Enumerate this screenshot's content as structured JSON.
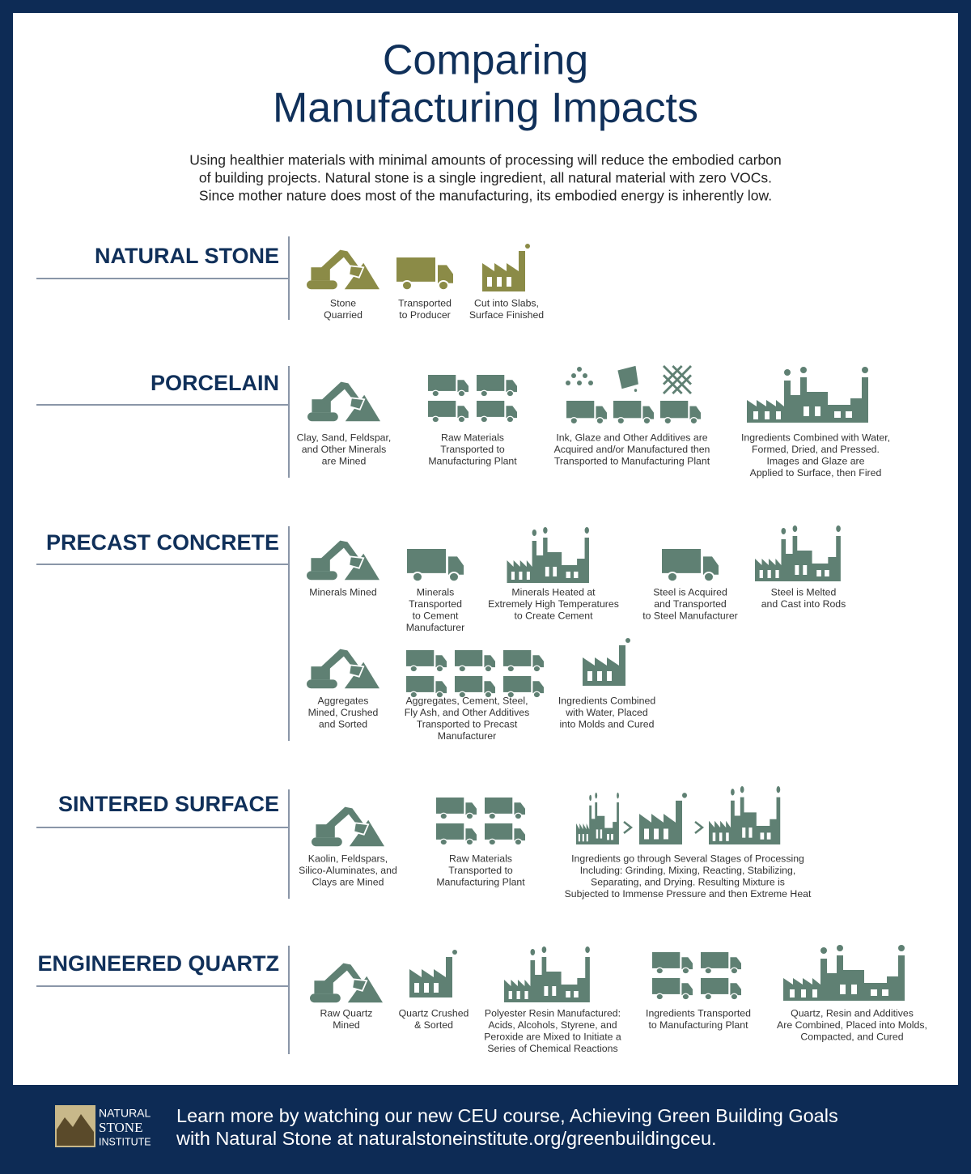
{
  "header": {
    "title": [
      "Comparing",
      "Manufacturing Impacts"
    ],
    "intro": [
      "Using healthier materials with minimal amounts of processing will reduce the embodied carbon",
      "of building projects. Natural stone is a single ingredient, all natural material with zero VOCs.",
      "Since mother nature does most of the manufacturing, its embodied energy is inherently low."
    ]
  },
  "sections": [
    {
      "name": "NATURAL STONE",
      "steps": [
        [
          "Stone",
          "Quarried"
        ],
        [
          "Transported",
          "to Producer"
        ],
        [
          "Cut into Slabs,",
          "Surface Finished"
        ]
      ]
    },
    {
      "name": "PORCELAIN",
      "steps": [
        [
          "Clay, Sand, Feldspar,",
          "and Other Minerals",
          "are Mined"
        ],
        [
          "Raw Materials",
          "Transported to",
          "Manufacturing Plant"
        ],
        [
          "Ink, Glaze and Other Additives are",
          "Acquired and/or Manufactured then",
          "Transported to Manufacturing Plant"
        ],
        [
          "Ingredients Combined with Water,",
          "Formed, Dried, and Pressed.",
          "Images and Glaze are",
          "Applied to Surface, then Fired"
        ]
      ]
    },
    {
      "name": "PRECAST CONCRETE",
      "steps": [
        [
          "Minerals Mined"
        ],
        [
          "Minerals",
          "Transported",
          "to Cement",
          "Manufacturer"
        ],
        [
          "Minerals Heated at",
          "Extremely High Temperatures",
          "to Create Cement"
        ],
        [
          "Steel is Acquired",
          "and Transported",
          "to Steel Manufacturer"
        ],
        [
          "Steel is Melted",
          "and Cast into Rods"
        ],
        [
          "Aggregates",
          "Mined, Crushed",
          "and Sorted"
        ],
        [
          "Aggregates, Cement, Steel,",
          "Fly Ash, and Other Additives",
          "Transported to Precast",
          "Manufacturer"
        ],
        [
          "Ingredients Combined",
          "with Water, Placed",
          "into Molds and Cured"
        ]
      ]
    },
    {
      "name": "SINTERED SURFACE",
      "steps": [
        [
          "Kaolin, Feldspars,",
          "Silico-Aluminates, and",
          "Clays are Mined"
        ],
        [
          "Raw Materials",
          "Transported to",
          "Manufacturing Plant"
        ],
        [
          "Ingredients go through Several Stages of Processing",
          "Including: Grinding, Mixing, Reacting, Stabilizing,",
          "Separating, and Drying.  Resulting Mixture is",
          "Subjected to Immense Pressure and then Extreme Heat"
        ]
      ]
    },
    {
      "name": "ENGINEERED QUARTZ",
      "steps": [
        [
          "Raw Quartz",
          "Mined"
        ],
        [
          "Quartz Crushed",
          "& Sorted"
        ],
        [
          "Polyester Resin Manufactured:",
          "Acids, Alcohols, Styrene, and",
          "Peroxide are Mixed to Initiate a",
          "Series of Chemical Reactions"
        ],
        [
          "Ingredients Transported",
          "to Manufacturing Plant"
        ],
        [
          "Quartz, Resin and Additives",
          "Are Combined, Placed into Molds,",
          "Compacted, and Cured"
        ]
      ]
    }
  ],
  "footer": {
    "logo": [
      "NATURAL",
      "STONE",
      "INSTITUTE"
    ],
    "text": [
      "Learn more by watching our new CEU course, Achieving Green Building Goals",
      "with Natural Stone at naturalstoneinstitute.org/greenbuildingceu."
    ]
  }
}
